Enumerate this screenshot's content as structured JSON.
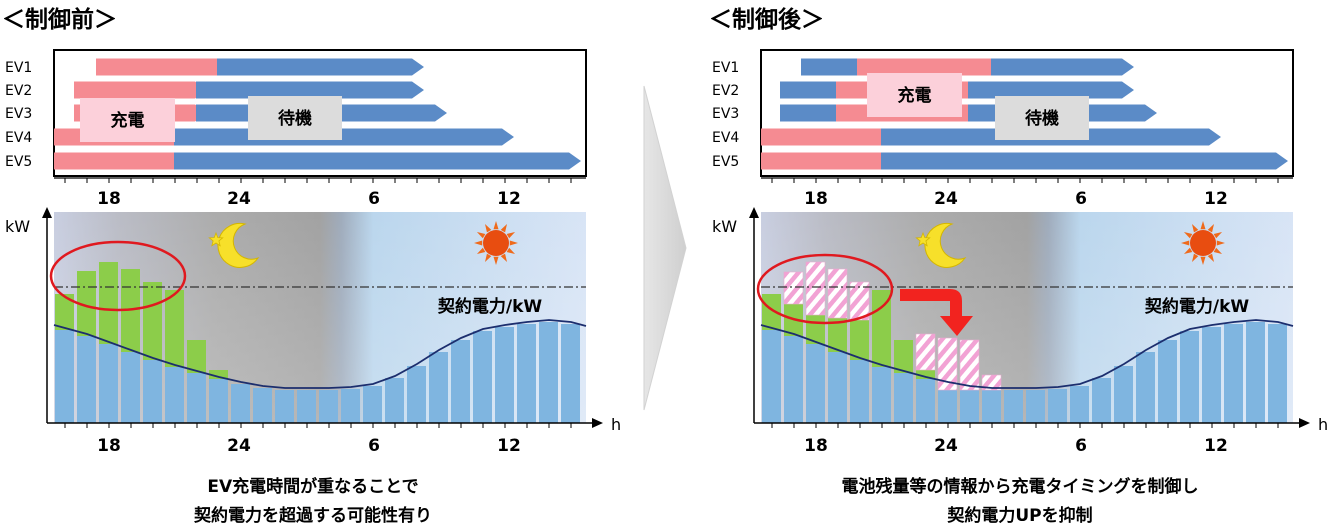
{
  "panels": [
    {
      "title": "＜制御前＞",
      "ev_labels": [
        "EV1",
        "EV2",
        "EV3",
        "EV4",
        "EV5"
      ],
      "charge_label": "充電",
      "standby_label": "待機",
      "time_ticks": [
        "18",
        "24",
        "6",
        "12"
      ],
      "y_label": "kW",
      "x_label": "h",
      "contract_label": "契約電力/kW",
      "caption_lines": [
        "EV充電時間が重なることで",
        "契約電力を超過する可能性有り"
      ]
    },
    {
      "title": "＜制御後＞",
      "ev_labels": [
        "EV1",
        "EV2",
        "EV3",
        "EV4",
        "EV5"
      ],
      "charge_label": "充電",
      "standby_label": "待機",
      "time_ticks": [
        "18",
        "24",
        "6",
        "12"
      ],
      "y_label": "kW",
      "x_label": "h",
      "contract_label": "契約電力/kW",
      "caption_lines": [
        "電池残量等の情報から充電タイミングを制御し",
        "契約電力UPを抑制"
      ]
    }
  ],
  "colors": {
    "charge": "#f58b92",
    "standby": "#5b8bc7",
    "base_load": "#7fb5e0",
    "ev_load": "#8ccd4a",
    "shifted_load": "#f2a2d4",
    "overlap_circle": "#e0191f",
    "control_arrow": "#f2231f",
    "label_box_charge": "#fcd0da",
    "label_box_standby": "#dcdcdc"
  },
  "icons": [
    "moon-icon",
    "star-icon",
    "sun-icon",
    "transition-arrow-icon"
  ]
}
